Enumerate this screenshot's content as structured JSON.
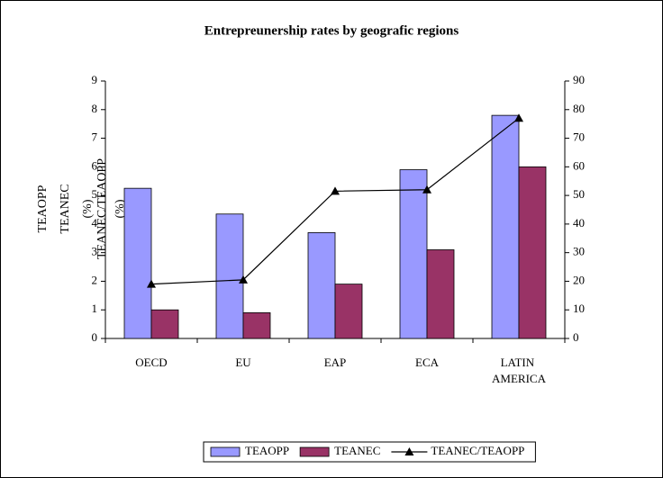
{
  "chart_data": {
    "type": "bar_line",
    "title": "Entrepreunership rates by geografic regions",
    "categories": [
      "OECD",
      "EU",
      "EAP",
      "ECA",
      "LATIN AMERICA"
    ],
    "y_label": [
      "TEAOPP",
      "TEANEC",
      "(%)"
    ],
    "y_label_2": [
      "TEANEC/TEAOPP",
      "(%)"
    ],
    "series": [
      {
        "name": "TEAOPP",
        "type": "bar",
        "color": "#9999ff",
        "values": [
          5.25,
          4.35,
          3.7,
          5.9,
          7.8
        ]
      },
      {
        "name": "TEANEC",
        "type": "bar",
        "color": "#993366",
        "values": [
          1.0,
          0.9,
          1.9,
          3.1,
          6.0
        ]
      },
      {
        "name": "TEANEC/TEAOPP",
        "type": "line",
        "axis": "y2",
        "color": "#000000",
        "values": [
          19,
          20.5,
          51.5,
          52,
          77
        ]
      }
    ],
    "ylim": [
      0,
      9
    ],
    "yticks": [
      0,
      1,
      2,
      3,
      4,
      5,
      6,
      7,
      8,
      9
    ],
    "y2lim": [
      0,
      90
    ],
    "y2ticks": [
      0,
      10,
      20,
      30,
      40,
      50,
      60,
      70,
      80,
      90
    ],
    "legend": "bottom"
  }
}
